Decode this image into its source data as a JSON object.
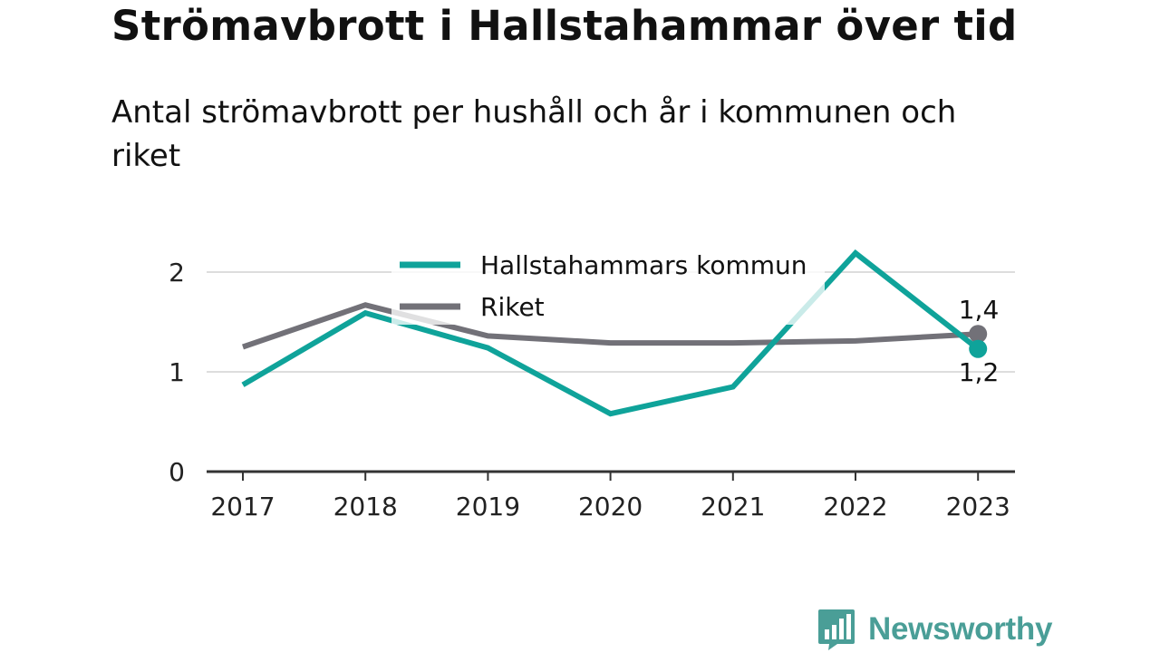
{
  "title": "Strömavbrott i Hallstahammar över tid",
  "subtitle": "Antal strömavbrott per hushåll och år i kommunen och riket",
  "brand": {
    "name": "Newsworthy"
  },
  "colors": {
    "kommun": "#0fa39a",
    "riket": "#727178",
    "grid": "#dddddd",
    "axis": "#333333",
    "brand": "#4a9e97"
  },
  "chart_data": {
    "type": "line",
    "x": [
      "2017",
      "2018",
      "2019",
      "2020",
      "2021",
      "2022",
      "2023"
    ],
    "series": [
      {
        "name": "Hallstahammars kommun",
        "color": "#0fa39a",
        "values": [
          0.87,
          1.59,
          1.24,
          0.58,
          0.85,
          2.19,
          1.23
        ]
      },
      {
        "name": "Riket",
        "color": "#727178",
        "values": [
          1.25,
          1.67,
          1.36,
          1.29,
          1.29,
          1.31,
          1.38
        ]
      }
    ],
    "yticks": [
      "0",
      "1",
      "2"
    ],
    "ylim": [
      0,
      2.2
    ],
    "grid": true,
    "legend": "top-center",
    "end_labels": {
      "kommun": "1,2",
      "riket": "1,4"
    }
  }
}
